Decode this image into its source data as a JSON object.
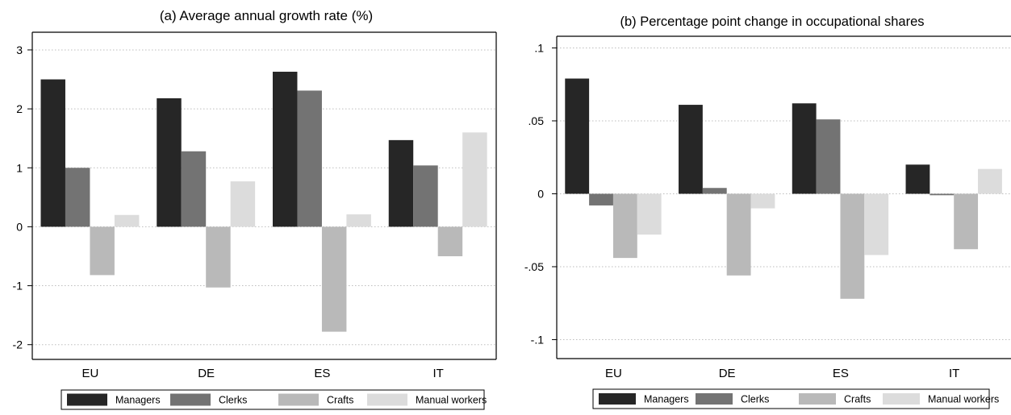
{
  "chart_data": [
    {
      "type": "bar",
      "title": "(a) Average annual growth rate (%)",
      "xlabel": "",
      "ylabel": "",
      "categories": [
        "EU",
        "DE",
        "ES",
        "IT"
      ],
      "ylim": [
        -2.25,
        3.3
      ],
      "yticks": [
        3,
        2,
        1,
        0,
        -1,
        -2
      ],
      "ytick_labels": [
        "3",
        "2",
        "1",
        "0",
        "-1",
        "-2"
      ],
      "grid": true,
      "legend_position": "bottom",
      "series": [
        {
          "name": "Managers",
          "color": "#262626",
          "values": [
            2.5,
            2.18,
            2.63,
            1.47
          ]
        },
        {
          "name": "Clerks",
          "color": "#737373",
          "values": [
            1.0,
            1.28,
            2.31,
            1.04
          ]
        },
        {
          "name": "Crafts",
          "color": "#b9b9b9",
          "values": [
            -0.82,
            -1.03,
            -1.78,
            -0.5
          ]
        },
        {
          "name": "Manual workers",
          "color": "#dcdcdc",
          "values": [
            0.2,
            0.77,
            0.21,
            1.6
          ]
        }
      ]
    },
    {
      "type": "bar",
      "title": "(b) Percentage point change in occupational shares",
      "xlabel": "",
      "ylabel": "",
      "categories": [
        "EU",
        "DE",
        "ES",
        "IT"
      ],
      "ylim": [
        -0.113,
        0.108
      ],
      "yticks": [
        0.1,
        0.05,
        0,
        -0.05,
        -0.1
      ],
      "ytick_labels": [
        ".1",
        ".05",
        "0",
        "-.05",
        "-.1"
      ],
      "grid": true,
      "legend_position": "bottom",
      "series": [
        {
          "name": "Managers",
          "color": "#262626",
          "values": [
            0.079,
            0.061,
            0.062,
            0.02
          ]
        },
        {
          "name": "Clerks",
          "color": "#737373",
          "values": [
            -0.008,
            0.004,
            0.051,
            -0.001
          ]
        },
        {
          "name": "Crafts",
          "color": "#b9b9b9",
          "values": [
            -0.044,
            -0.056,
            -0.072,
            -0.038
          ]
        },
        {
          "name": "Manual workers",
          "color": "#dcdcdc",
          "values": [
            -0.028,
            -0.01,
            -0.042,
            0.017
          ]
        }
      ]
    }
  ]
}
